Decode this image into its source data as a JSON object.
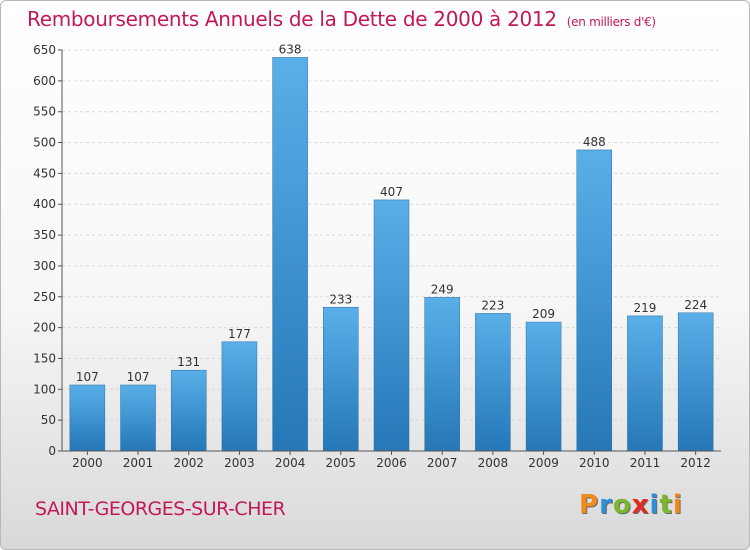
{
  "header": {
    "title": "Remboursements Annuels de la Dette de 2000 à 2012",
    "unit": "(en milliers d'€)"
  },
  "footer": {
    "place": "SAINT-GEORGES-SUR-CHER",
    "logo_letters": [
      {
        "ch": "P",
        "color": "#f08a1c"
      },
      {
        "ch": "r",
        "color": "#2e8fd8"
      },
      {
        "ch": "o",
        "color": "#7ab72a"
      },
      {
        "ch": "x",
        "color": "#e02c1f"
      },
      {
        "ch": "i",
        "color": "#2e8fd8"
      },
      {
        "ch": "t",
        "color": "#7ab72a"
      },
      {
        "ch": "i",
        "color": "#f08a1c"
      }
    ]
  },
  "chart_data": {
    "type": "bar",
    "categories": [
      "2000",
      "2001",
      "2002",
      "2003",
      "2004",
      "2005",
      "2006",
      "2007",
      "2008",
      "2009",
      "2010",
      "2011",
      "2012"
    ],
    "values": [
      107,
      107,
      131,
      177,
      638,
      233,
      407,
      249,
      223,
      209,
      488,
      219,
      224
    ],
    "ylim": [
      0,
      650
    ],
    "yticks": [
      0,
      50,
      100,
      150,
      200,
      250,
      300,
      350,
      400,
      450,
      500,
      550,
      600,
      650
    ],
    "grid": true,
    "bar_color_top": "#5aafe8",
    "bar_color_bottom": "#2577b8"
  }
}
